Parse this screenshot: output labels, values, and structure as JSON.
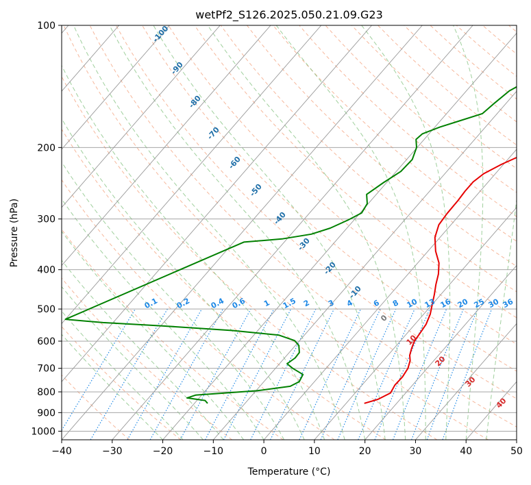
{
  "chart_data": {
    "type": "line",
    "title": "wetPf2_S126.2025.050.21.09.G23",
    "xlabel": "Temperature (°C)",
    "ylabel": "Pressure (hPa)",
    "xlim": [
      -40,
      50
    ],
    "ylim": [
      1050,
      100
    ],
    "y_scale": "log",
    "grid": true,
    "x_ticks": [
      -40,
      -30,
      -20,
      -10,
      0,
      10,
      20,
      30,
      40,
      50
    ],
    "y_ticks": [
      100,
      200,
      300,
      400,
      500,
      600,
      700,
      800,
      900,
      1000
    ],
    "series": [
      {
        "name": "",
        "color": "#e60000",
        "points": [
          [
            13.6,
            854
          ],
          [
            15.6,
            835
          ],
          [
            17.0,
            805
          ],
          [
            16.5,
            770
          ],
          [
            16.6,
            735
          ],
          [
            16.2,
            700
          ],
          [
            15.3,
            670
          ],
          [
            14.3,
            650
          ],
          [
            13.5,
            625
          ],
          [
            12.8,
            600
          ],
          [
            12.5,
            570
          ],
          [
            12.2,
            545
          ],
          [
            11.3,
            515
          ],
          [
            9.9,
            485
          ],
          [
            8.7,
            460
          ],
          [
            7.3,
            435
          ],
          [
            6.0,
            410
          ],
          [
            4.2,
            385
          ],
          [
            1.5,
            360
          ],
          [
            -1.0,
            333
          ],
          [
            -2.4,
            310
          ],
          [
            -2.7,
            291
          ],
          [
            -2.8,
            270
          ],
          [
            -3.0,
            256
          ],
          [
            -3.0,
            243
          ],
          [
            -2.3,
            232
          ],
          [
            -0.4,
            220
          ],
          [
            2.0,
            209
          ],
          [
            5.4,
            197
          ],
          [
            7.4,
            190
          ],
          [
            9.2,
            181
          ],
          [
            10.9,
            173
          ],
          [
            12.7,
            163
          ],
          [
            14.9,
            152
          ],
          [
            16.3,
            144
          ],
          [
            17.4,
            135
          ],
          [
            19.4,
            127
          ],
          [
            21.6,
            119
          ],
          [
            24.4,
            112
          ],
          [
            26.4,
            105
          ],
          [
            27.7,
            100
          ]
        ]
      },
      {
        "name": "",
        "color": "#008000",
        "points": [
          [
            -17.4,
            854
          ],
          [
            -18.4,
            840
          ],
          [
            -22.4,
            828
          ],
          [
            -21.2,
            815
          ],
          [
            -9.8,
            795
          ],
          [
            -4.0,
            775
          ],
          [
            -3.0,
            755
          ],
          [
            -3.5,
            725
          ],
          [
            -6.6,
            700
          ],
          [
            -8.5,
            682
          ],
          [
            -7.9,
            660
          ],
          [
            -8.0,
            640
          ],
          [
            -9.3,
            615
          ],
          [
            -11.0,
            598
          ],
          [
            -15.0,
            580
          ],
          [
            -25.0,
            565
          ],
          [
            -40.0,
            550
          ],
          [
            -52.0,
            540
          ],
          [
            -60.0,
            530
          ],
          [
            -38.0,
            342
          ],
          [
            -31.0,
            336
          ],
          [
            -26.0,
            327
          ],
          [
            -23.3,
            316
          ],
          [
            -21.2,
            302
          ],
          [
            -19.7,
            290
          ],
          [
            -20.2,
            275
          ],
          [
            -21.9,
            261
          ],
          [
            -20.6,
            244
          ],
          [
            -19.1,
            229
          ],
          [
            -18.9,
            214
          ],
          [
            -20.1,
            200
          ],
          [
            -21.6,
            191
          ],
          [
            -21.3,
            185
          ],
          [
            -19.0,
            178
          ],
          [
            -16.2,
            172
          ],
          [
            -12.9,
            165
          ],
          [
            -12.3,
            155
          ],
          [
            -11.5,
            145
          ],
          [
            -9.6,
            137
          ],
          [
            -7.8,
            128
          ],
          [
            -7.4,
            119
          ],
          [
            -6.0,
            113
          ],
          [
            -3.3,
            108
          ],
          [
            -1.6,
            103
          ],
          [
            -0.6,
            100
          ]
        ]
      }
    ],
    "dry_adiabat_labels": [
      "-100",
      "-90",
      "-80",
      "-70",
      "-60",
      "-50",
      "-40",
      "-30",
      "-20",
      "-10"
    ],
    "moist_adiabat_labels": [
      "0",
      "10",
      "20",
      "30",
      "40"
    ],
    "mixing_ratio_labels": [
      "0.1",
      "0.2",
      "0.4",
      "0.6",
      "1",
      "1.5",
      "2",
      "3",
      "4",
      "6",
      "8",
      "10",
      "13",
      "16",
      "20",
      "25",
      "30",
      "36"
    ],
    "colors": {
      "temperature": "#e60000",
      "dewpoint": "#008000",
      "isotherm": "#999999",
      "dry_adiabat": "#f4a582",
      "moist_adiabat": "#7fbf7b",
      "mixing_ratio": "#1e88e5",
      "dry_label": "#1f6fa8",
      "moist_label": "#d62728"
    }
  }
}
